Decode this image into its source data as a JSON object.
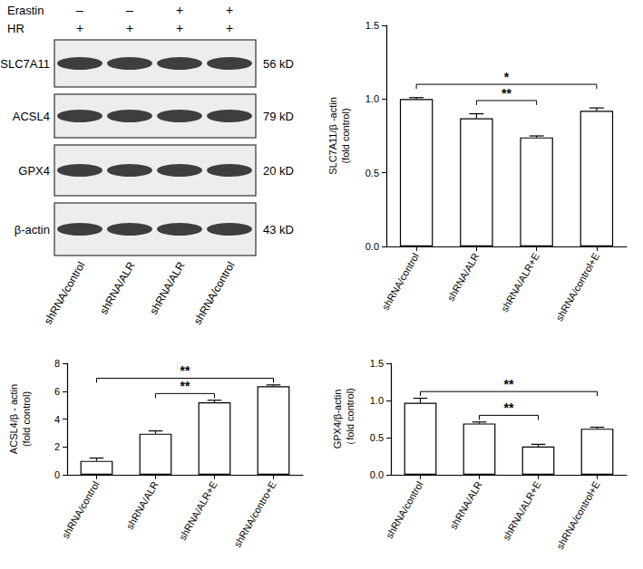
{
  "blot": {
    "treatments": [
      {
        "label": "Erastin",
        "values": [
          "–",
          "–",
          "+",
          "+"
        ]
      },
      {
        "label": "HR",
        "values": [
          "+",
          "+",
          "+",
          "+"
        ]
      }
    ],
    "proteins": [
      {
        "name": "SLC7A11",
        "size": "56 kD"
      },
      {
        "name": "ACSL4",
        "size": "79 kD"
      },
      {
        "name": "GPX4",
        "size": "20 kD"
      },
      {
        "name": "β-actin",
        "size": "43 kD"
      }
    ],
    "lanes": [
      "shRNA/control",
      "shRNA/ALR",
      "shRNA/ALR",
      "shRNA/control"
    ]
  },
  "chart_data": [
    {
      "type": "bar",
      "y_label": "SLC7A11/β -actin\n(fold control)",
      "categories": [
        "shRNA/control",
        "shRNA/ALR",
        "shRNA/ALR+E",
        "shRNA/control+E"
      ],
      "values": [
        1.0,
        0.87,
        0.74,
        0.92
      ],
      "errors": [
        0.01,
        0.03,
        0.01,
        0.02
      ],
      "color": "#ffffff",
      "ylim": [
        0,
        1.5
      ],
      "yticks": [
        {
          "value": 0,
          "label": "0.0"
        },
        0.5,
        {
          "value": 1,
          "label": "1.0"
        },
        1.5
      ],
      "grid": false,
      "significance": [
        {
          "from": "shRNA/control",
          "to": "shRNA/control+E",
          "label": "*"
        },
        {
          "from": "shRNA/ALR",
          "to": "shRNA/ALR+E",
          "label": "**"
        }
      ]
    },
    {
      "type": "bar",
      "y_label": "ACSL4/β - actin\n(fold control)",
      "categories": [
        "shRNA/control",
        "shRNA/ALR",
        "shRNA/ALR+E",
        "shRNA/contro+E"
      ],
      "values": [
        1.0,
        2.95,
        5.2,
        6.35
      ],
      "errors": [
        0.2,
        0.2,
        0.15,
        0.1
      ],
      "color": "#ffffff",
      "ylim": [
        0,
        8
      ],
      "yticks": [
        0,
        2,
        4,
        6,
        8
      ],
      "grid": false,
      "significance": [
        {
          "from": "shRNA/control",
          "to": "shRNA/contro+E",
          "label": "**"
        },
        {
          "from": "shRNA/ALR",
          "to": "shRNA/ALR+E",
          "label": "**"
        }
      ]
    },
    {
      "type": "bar",
      "y_label": "GPX4/β-actin\n（fold control)",
      "categories": [
        "shRNA/control",
        "shRNA/ALR",
        "shRNA/ALR+E",
        "shRNA/control+E"
      ],
      "values": [
        0.97,
        0.69,
        0.38,
        0.62
      ],
      "errors": [
        0.06,
        0.02,
        0.03,
        0.02
      ],
      "color": "#ffffff",
      "ylim": [
        0,
        1.5
      ],
      "yticks": [
        {
          "value": 0,
          "label": "0.0"
        },
        0.5,
        {
          "value": 1,
          "label": "1.0"
        },
        1.5
      ],
      "grid": false,
      "significance": [
        {
          "from": "shRNA/control",
          "to": "shRNA/control+E",
          "label": "**"
        },
        {
          "from": "shRNA/ALR",
          "to": "shRNA/ALR+E",
          "label": "**"
        }
      ]
    }
  ]
}
